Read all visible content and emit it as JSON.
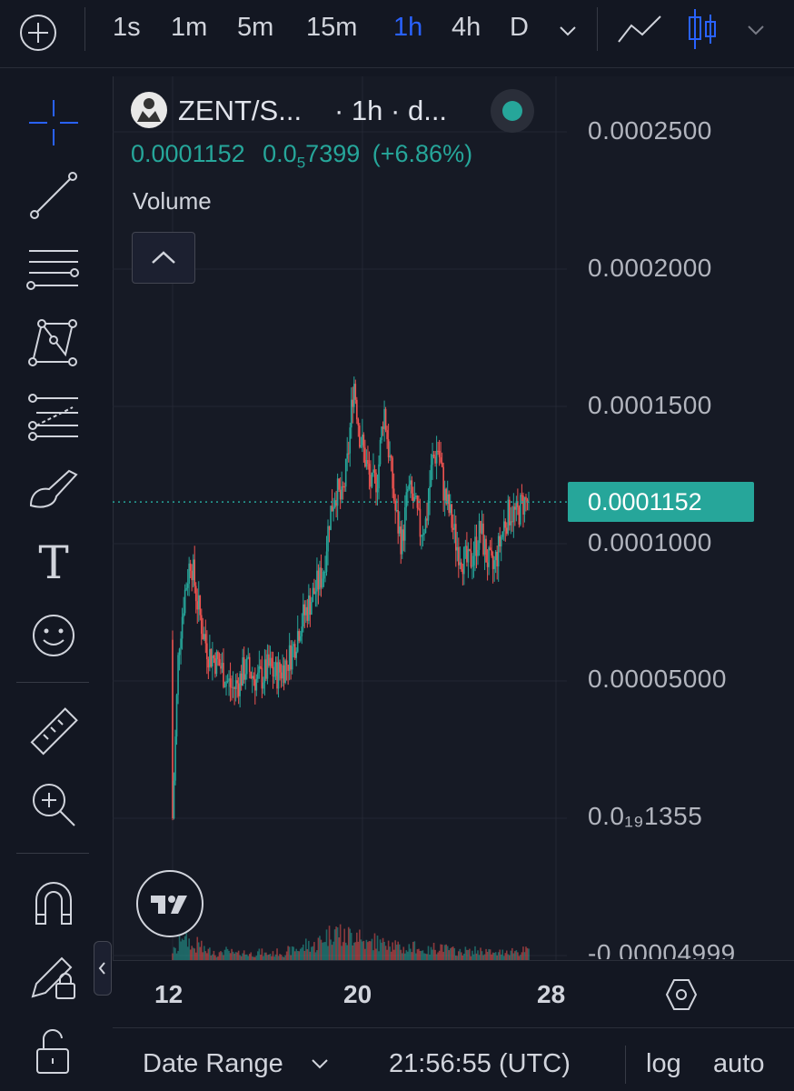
{
  "top_bar": {
    "add_icon": "plus-circle-icon",
    "timeframes": [
      "1s",
      "1m",
      "5m",
      "15m",
      "1h",
      "4h",
      "D"
    ],
    "active_timeframe": "1h",
    "dropdown_icon": "chevron-down-icon",
    "chart_type_icons": [
      "line-chart-icon",
      "candlestick-icon",
      "chevron-down-icon"
    ]
  },
  "left_toolbar": {
    "tools": [
      "crosshair-icon",
      "trend-line-icon",
      "fib-retracement-icon",
      "pattern-icon",
      "prediction-icon",
      "brush-icon",
      "text-icon",
      "emoji-icon",
      "ruler-icon",
      "zoom-in-icon",
      "magnet-icon",
      "lock-drawing-icon",
      "unlock-icon"
    ],
    "text_tool_glyph": "T"
  },
  "legend": {
    "symbol": "ZENT/S...",
    "interval": "· 1h · d...",
    "last_price": "0.0001152",
    "change_prefix": "0.0",
    "change_sub": "5",
    "change_rest": "7399",
    "change_pct": "(+6.86%)",
    "volume_label": "Volume",
    "collapse_icon": "chevron-up-icon",
    "status_color": "#26a69a"
  },
  "price_axis": {
    "labels": [
      "0.0002500",
      "0.0002000",
      "0.0001500",
      "0.0001000",
      "0.00005000",
      "0.0₁₉1355",
      "-0.00004999"
    ],
    "current_price": "0.0001152",
    "current_price_color": "#26a69a"
  },
  "time_axis": {
    "labels": [
      "12",
      "20",
      "28"
    ],
    "settings_icon": "hexagon-settings-icon"
  },
  "bottom_bar": {
    "date_range": "Date Range",
    "time": "21:56:55 (UTC)",
    "log": "log",
    "auto": "auto"
  },
  "colors": {
    "up": "#26a69a",
    "down": "#ef5350",
    "accent": "#2962ff",
    "background": "#131722"
  },
  "chart_data": {
    "type": "candlestick",
    "series": [
      {
        "name": "ZENT/S...",
        "interval": "1h"
      }
    ],
    "y_axis": {
      "min": -4.999e-05,
      "max": 0.00025,
      "ticks": [
        0.00025,
        0.0002,
        0.00015,
        0.0001,
        5e-05
      ]
    },
    "x_axis": {
      "ticks": [
        "12",
        "20",
        "28"
      ]
    },
    "last_price": 0.0001152,
    "close_trace": [
      0.0,
      6.3e-05,
      8.2e-05,
      9.5e-05,
      8e-05,
      6.8e-05,
      6e-05,
      5.8e-05,
      5.5e-05,
      5e-05,
      4.7e-05,
      5e-05,
      5.5e-05,
      5.3e-05,
      5e-05,
      5.2e-05,
      5.5e-05,
      5.2e-05,
      5.4e-05,
      5.7e-05,
      6.2e-05,
      7e-05,
      7.5e-05,
      8e-05,
      8.5e-05,
      9e-05,
      0.00011,
      0.00012,
      0.000115,
      0.00013,
      0.00016,
      0.00014,
      0.00013,
      0.00012,
      0.000125,
      0.00015,
      0.00013,
      0.00011,
      0.0001,
      0.00012,
      0.000115,
      0.000105,
      0.000108,
      0.00013,
      0.000135,
      0.000118,
      0.00011,
      0.0001,
      9.5e-05,
      9.2e-05,
      9.8e-05,
      0.000105,
      9.5e-05,
      9e-05,
      9.8e-05,
      0.000108,
      0.000112,
      0.00011,
      0.000115,
      0.0001152
    ],
    "volume_trace": [
      0.3,
      0.9,
      0.6,
      0.4,
      0.5,
      0.3,
      0.3,
      0.2,
      0.3,
      0.25,
      0.2,
      0.25,
      0.2,
      0.2,
      0.25,
      0.2,
      0.2,
      0.25,
      0.2,
      0.3,
      0.35,
      0.4,
      0.5,
      0.45,
      0.6,
      0.8,
      1.0,
      0.9,
      0.7,
      0.8,
      0.9,
      0.6,
      0.5,
      0.6,
      0.5,
      0.7,
      0.5,
      0.4,
      0.35,
      0.4,
      0.45,
      0.3,
      0.3,
      0.4,
      0.45,
      0.35,
      0.3,
      0.25,
      0.3,
      0.25,
      0.3,
      0.3,
      0.25,
      0.2,
      0.25,
      0.3,
      0.3,
      0.25,
      0.3,
      0.3
    ]
  }
}
